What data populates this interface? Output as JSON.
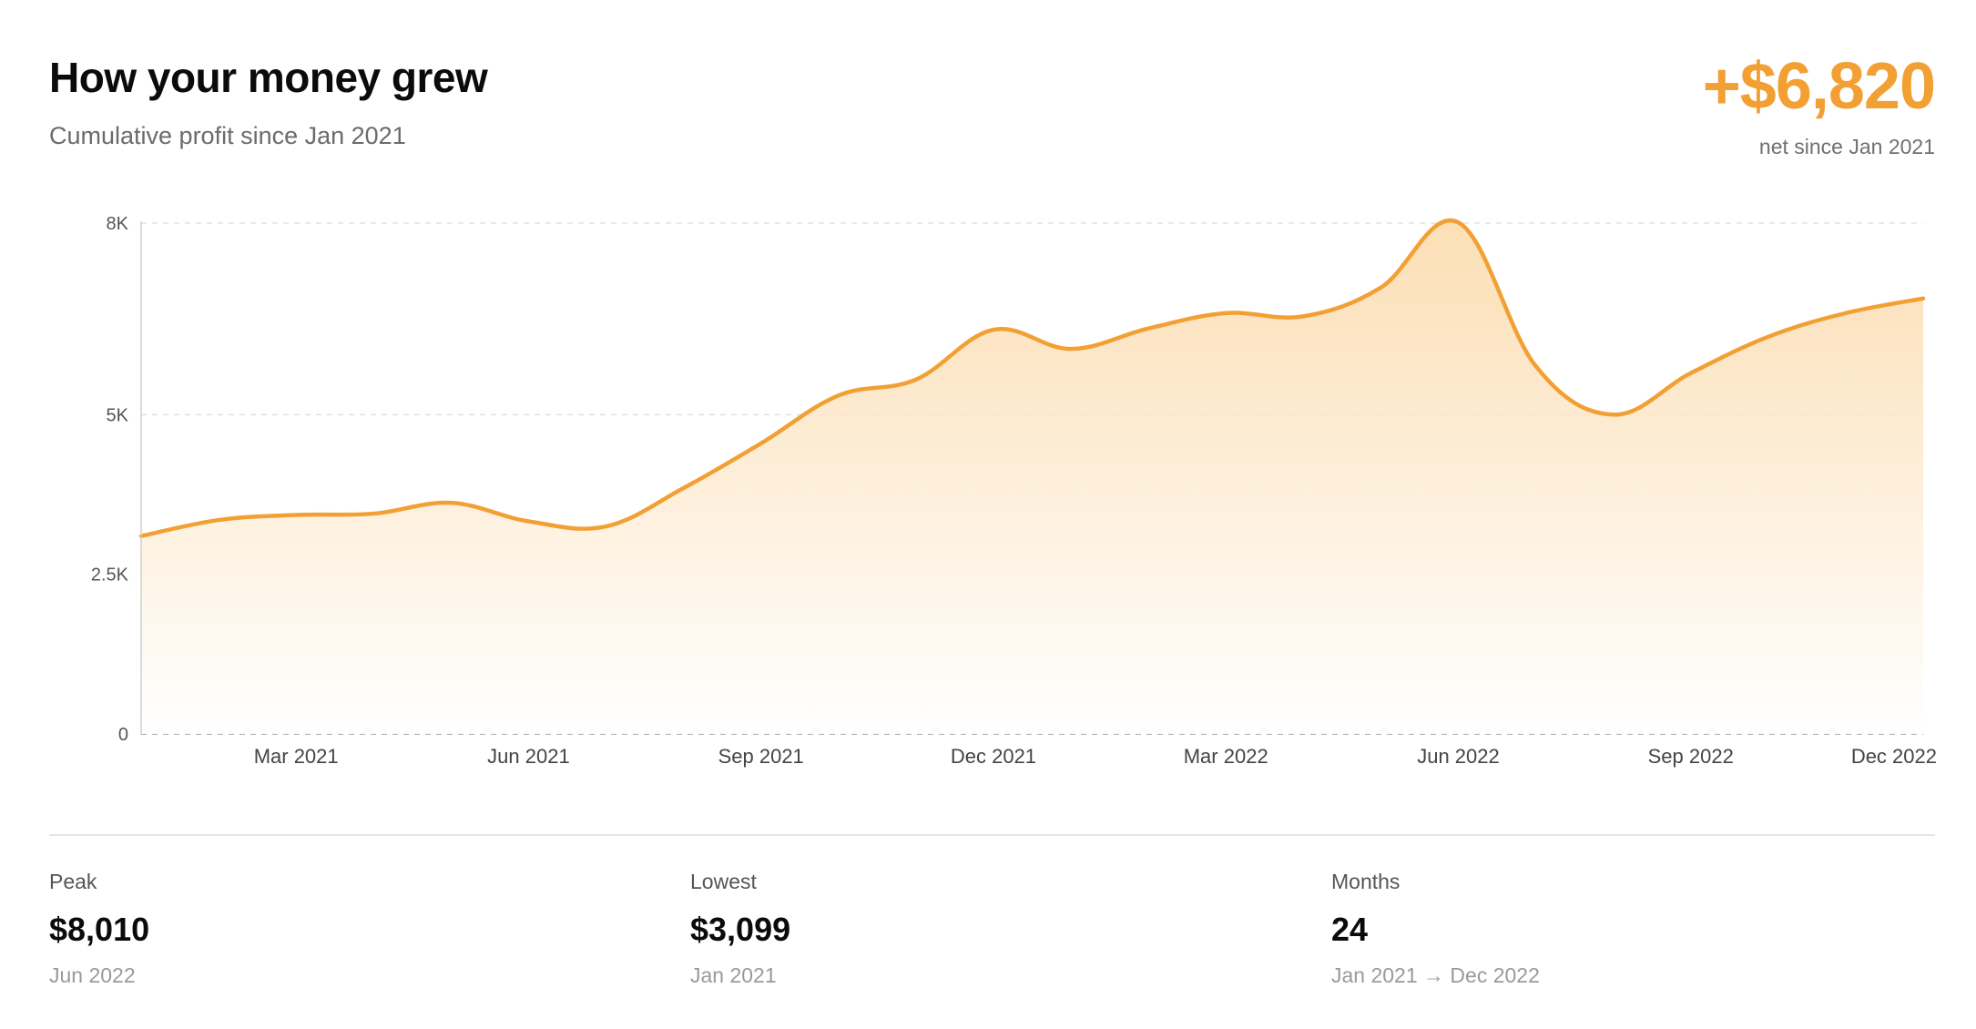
{
  "header": {
    "title": "How your money grew",
    "subtitle": "Cumulative profit since Jan 2021",
    "net_value": "+$6,820",
    "net_label": "net since Jan 2021"
  },
  "colors": {
    "accent": "#f2a033",
    "fill_top": "#fbd9a8",
    "grid": "#dcdcdc"
  },
  "chart_data": {
    "type": "area",
    "title": "",
    "xlabel": "",
    "ylabel": "",
    "ylim": [
      0,
      8000
    ],
    "y_ticks": [
      0,
      2500,
      5000,
      8000
    ],
    "y_tick_labels": [
      "0",
      "2.5K",
      "5K",
      "8K"
    ],
    "x_tick_labels": [
      "Mar 2021",
      "Jun 2021",
      "Sep 2021",
      "Dec 2021",
      "Mar 2022",
      "Jun 2022",
      "Sep 2022",
      "Dec 2022"
    ],
    "x": [
      "Jan 2021",
      "Feb 2021",
      "Mar 2021",
      "Apr 2021",
      "May 2021",
      "Jun 2021",
      "Jul 2021",
      "Aug 2021",
      "Sep 2021",
      "Oct 2021",
      "Nov 2021",
      "Dec 2021",
      "Jan 2022",
      "Feb 2022",
      "Mar 2022",
      "Apr 2022",
      "May 2022",
      "Jun 2022",
      "Jul 2022",
      "Aug 2022",
      "Sep 2022",
      "Oct 2022",
      "Nov 2022",
      "Dec 2022"
    ],
    "series": [
      {
        "values": [
          3099,
          3350,
          3430,
          3450,
          3620,
          3330,
          3250,
          3850,
          4550,
          5300,
          5550,
          6330,
          6030,
          6350,
          6590,
          6540,
          6990,
          8010,
          5760,
          5000,
          5650,
          6220,
          6590,
          6820
        ]
      }
    ],
    "grid": true,
    "legend": "none"
  },
  "stats": [
    {
      "label": "Peak",
      "value": "$8,010",
      "note": "Jun 2022"
    },
    {
      "label": "Lowest",
      "value": "$3,099",
      "note": "Jan 2021"
    },
    {
      "label": "Months",
      "value": "24",
      "note": "Jan 2021 → Dec 2022"
    }
  ]
}
